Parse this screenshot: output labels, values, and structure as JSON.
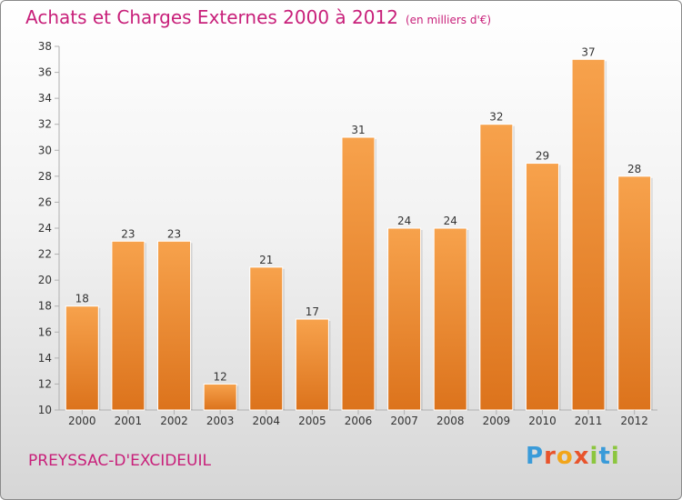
{
  "title": "Achats et Charges Externes 2000 à 2012",
  "subtitle": "(en milliers d'€)",
  "commune": "PREYSSAC-D'EXCIDEUIL",
  "logo": {
    "letters": [
      {
        "char": "P",
        "color": "#3a9bd9"
      },
      {
        "char": "r",
        "color": "#e8542c"
      },
      {
        "char": "o",
        "color": "#f2a51a"
      },
      {
        "char": "x",
        "color": "#e8542c"
      },
      {
        "char": "i",
        "color": "#8cc63f"
      },
      {
        "char": "t",
        "color": "#3a9bd9"
      },
      {
        "char": "i",
        "color": "#8cc63f"
      }
    ]
  },
  "colors": {
    "accent": "#c8207a",
    "bar_top": "#f7a24c",
    "bar_bottom": "#dc731c",
    "axis": "#b0b0b0"
  },
  "chart_data": {
    "type": "bar",
    "categories": [
      "2000",
      "2001",
      "2002",
      "2003",
      "2004",
      "2005",
      "2006",
      "2007",
      "2008",
      "2009",
      "2010",
      "2011",
      "2012"
    ],
    "values": [
      18,
      23,
      23,
      12,
      21,
      17,
      31,
      24,
      24,
      32,
      29,
      37,
      28
    ],
    "title": "Achats et Charges Externes 2000 à 2012",
    "xlabel": "",
    "ylabel": "",
    "ylim": [
      10,
      38
    ],
    "yticks": [
      10,
      12,
      14,
      16,
      18,
      20,
      22,
      24,
      26,
      28,
      30,
      32,
      34,
      36,
      38
    ],
    "grid": false,
    "data_labels": true
  }
}
